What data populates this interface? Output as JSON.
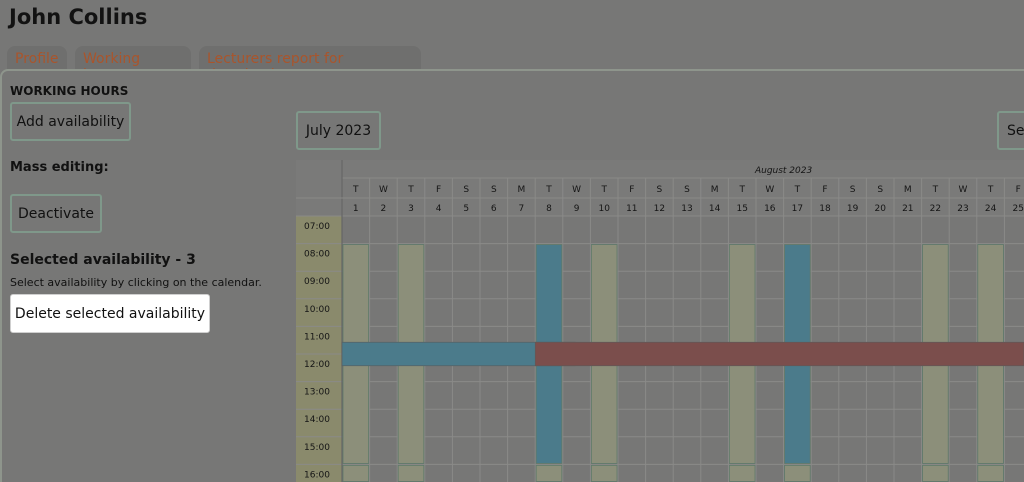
{
  "page": {
    "title": "John Collins"
  },
  "tabs": [
    "Profile",
    "Working hours",
    "Lecturers report for download"
  ],
  "sidebar": {
    "section_title": "WORKING HOURS",
    "add_label": "Add availability",
    "mass_editing_label": "Mass editing:",
    "deactivate_label": "Deactivate",
    "selected_label": "Selected availability - 3",
    "hint": "Select availability by clicking on the calendar.",
    "delete_label": "Delete selected availability"
  },
  "calendar": {
    "month_button": "July 2023",
    "right_button_partial": "Se",
    "month_header": "August 2023",
    "days": [
      {
        "w": "T",
        "d": "1"
      },
      {
        "w": "W",
        "d": "2"
      },
      {
        "w": "T",
        "d": "3"
      },
      {
        "w": "F",
        "d": "4"
      },
      {
        "w": "S",
        "d": "5"
      },
      {
        "w": "S",
        "d": "6"
      },
      {
        "w": "M",
        "d": "7"
      },
      {
        "w": "T",
        "d": "8"
      },
      {
        "w": "W",
        "d": "9"
      },
      {
        "w": "T",
        "d": "10"
      },
      {
        "w": "F",
        "d": "11"
      },
      {
        "w": "S",
        "d": "12"
      },
      {
        "w": "S",
        "d": "13"
      },
      {
        "w": "M",
        "d": "14"
      },
      {
        "w": "T",
        "d": "15"
      },
      {
        "w": "W",
        "d": "16"
      },
      {
        "w": "T",
        "d": "17"
      },
      {
        "w": "F",
        "d": "18"
      },
      {
        "w": "S",
        "d": "19"
      },
      {
        "w": "S",
        "d": "20"
      },
      {
        "w": "M",
        "d": "21"
      },
      {
        "w": "T",
        "d": "22"
      },
      {
        "w": "W",
        "d": "23"
      },
      {
        "w": "T",
        "d": "24"
      },
      {
        "w": "F",
        "d": "25"
      }
    ],
    "hours": [
      "07:00",
      "08:00",
      "09:00",
      "10:00",
      "11:00",
      "12:00",
      "13:00",
      "14:00",
      "15:00",
      "16:00"
    ],
    "colors": {
      "available": "#8c8f7a",
      "selected": "#4b7b8b",
      "blocked": "#7b4e4c",
      "grid": "#8a8a88",
      "hour_col": "#8a8a6c"
    },
    "vertical_bars": [
      {
        "day_index": 0,
        "from": "08:00",
        "to": "16:00",
        "kind": "available"
      },
      {
        "day_index": 2,
        "from": "08:00",
        "to": "16:00",
        "kind": "available"
      },
      {
        "day_index": 7,
        "from": "08:00",
        "to": "16:00",
        "kind": "selected"
      },
      {
        "day_index": 9,
        "from": "08:00",
        "to": "16:00",
        "kind": "available"
      },
      {
        "day_index": 14,
        "from": "08:00",
        "to": "16:00",
        "kind": "available"
      },
      {
        "day_index": 16,
        "from": "08:00",
        "to": "16:00",
        "kind": "selected"
      },
      {
        "day_index": 21,
        "from": "08:00",
        "to": "16:00",
        "kind": "available"
      },
      {
        "day_index": 23,
        "from": "08:00",
        "to": "16:00",
        "kind": "available"
      }
    ],
    "horizontal_bars": [
      {
        "from_day": 0,
        "to_day": 6,
        "hour": "11:30",
        "kind": "selected"
      },
      {
        "from_day": 7,
        "to_day": 24,
        "hour": "11:30",
        "kind": "blocked"
      }
    ]
  }
}
